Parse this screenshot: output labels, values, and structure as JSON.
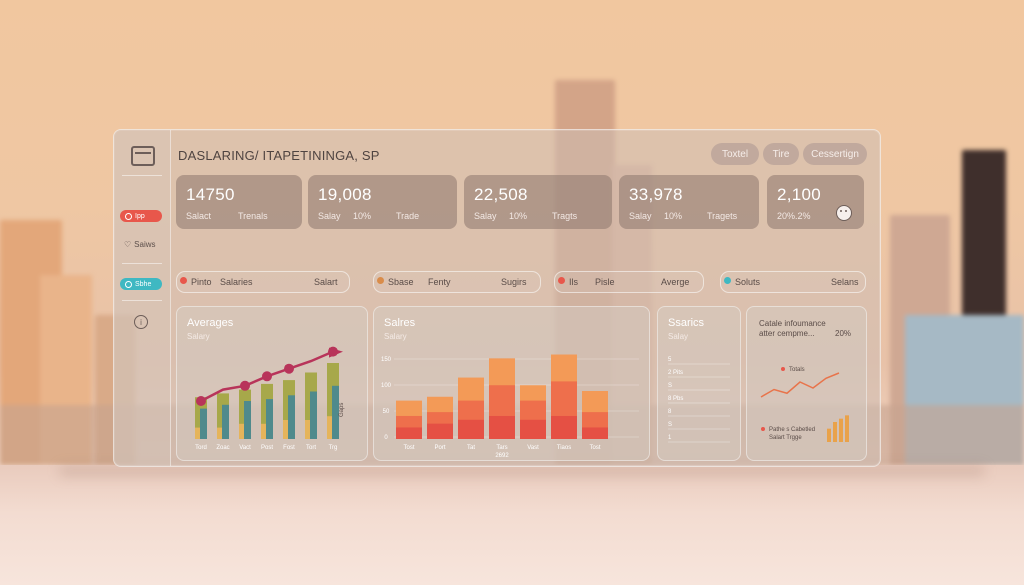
{
  "header": {
    "title": "DASLARING/ ITAPETININGA, SP",
    "buttons": [
      "Toxtel",
      "Tire",
      "Cessertign"
    ]
  },
  "sidebar": {
    "pills": [
      {
        "label": "Ipp",
        "color": "#e8574b"
      },
      {
        "label": "Sbhe",
        "color": "#3fb8c2"
      }
    ],
    "items": [
      "Saiws"
    ],
    "help": "i"
  },
  "cards": [
    {
      "value": "14750",
      "subs": [
        "Salact",
        "Trenals"
      ]
    },
    {
      "value": "19,008",
      "subs": [
        "Salay",
        "10%",
        "Trade"
      ]
    },
    {
      "value": "22,508",
      "subs": [
        "Salay",
        "10%",
        "Tragts"
      ]
    },
    {
      "value": "33,978",
      "subs": [
        "Salay",
        "10%",
        "Tragets"
      ]
    },
    {
      "value": "2,100",
      "subs": [
        "20%.2%"
      ]
    }
  ],
  "filters": [
    {
      "label": "Pinto",
      "label2": "Salaries",
      "right": "Salart",
      "dot": "#e8574b"
    },
    {
      "label": "Sbase",
      "label2": "Fenty",
      "right": "Sugirs",
      "dot": "#d98c4a"
    },
    {
      "label": "Ils",
      "label2": "Pisle",
      "right": "Averge",
      "dot": "#e8574b"
    },
    {
      "label": "Soluts",
      "label2": "",
      "right": "Selans",
      "dot": "#3fb8c2"
    }
  ],
  "charts": {
    "averages": {
      "title": "Averages",
      "subtitle": "Salary",
      "side_label": "Gaps"
    },
    "salaries": {
      "title": "Salres",
      "subtitle": "Salary",
      "extra_label": "2692"
    },
    "searics": {
      "title": "Ssarics",
      "subtitle": "Salay"
    },
    "info": {
      "title": "Catale infoumance",
      "title2": "atter cempme...",
      "pct": "20%",
      "legend1": "Totals",
      "legend2": "Pathe s Cabetled",
      "legend3": "Salart Trgge"
    }
  },
  "chart_data": [
    {
      "type": "bar",
      "categories": [
        "Tord",
        "Zoac",
        "Vact",
        "Post",
        "Fost",
        "Tort",
        "Trg"
      ],
      "series": [
        {
          "values": [
            2.2,
            2.4,
            2.6,
            2.9,
            3.1,
            3.5,
            4.0
          ]
        },
        {
          "values": [
            1.6,
            1.8,
            2.0,
            2.1,
            2.3,
            2.5,
            2.8
          ]
        },
        {
          "values": [
            0.6,
            0.6,
            0.8,
            0.8,
            1.0,
            1.0,
            1.2
          ]
        }
      ],
      "line": [
        2.0,
        2.6,
        2.8,
        3.3,
        3.7,
        4.1,
        4.6
      ]
    },
    {
      "type": "bar",
      "categories": [
        "Tost",
        "Port",
        "Tat",
        "Tars",
        "Vast",
        "Tiaos",
        "Tost"
      ],
      "ylabels": [
        "150",
        "100",
        "50",
        "0"
      ],
      "series": [
        {
          "values": [
            20,
            22,
            32,
            42,
            28,
            44,
            25
          ]
        },
        {
          "values": [
            12,
            14,
            20,
            28,
            20,
            30,
            14
          ]
        },
        {
          "values": [
            6,
            8,
            10,
            12,
            10,
            12,
            6
          ]
        }
      ]
    },
    {
      "type": "bar",
      "ylabels": [
        "5",
        "2 Pits",
        "S",
        "8 Pbs",
        "8",
        "S",
        "1"
      ],
      "values": []
    },
    {
      "type": "line",
      "values": [
        2,
        3,
        2.5,
        4,
        3.2,
        4.5,
        5.2
      ],
      "bars": [
        2,
        3,
        3.5,
        4
      ]
    }
  ]
}
